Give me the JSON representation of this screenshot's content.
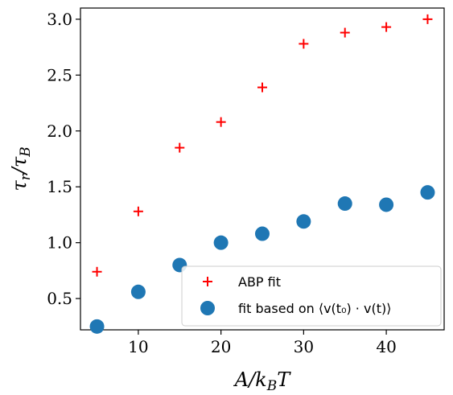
{
  "chart_data": {
    "type": "scatter",
    "title": "",
    "xlabel": "A/k_BT",
    "ylabel": "τ_r/τ_B",
    "xlim": [
      3,
      47
    ],
    "ylim": [
      0.22,
      3.1
    ],
    "xticks": [
      10,
      20,
      30,
      40
    ],
    "yticks": [
      0.5,
      1.0,
      1.5,
      2.0,
      2.5,
      3.0
    ],
    "xtick_labels": [
      "10",
      "20",
      "30",
      "40"
    ],
    "ytick_labels": [
      "0.5",
      "1.0",
      "1.5",
      "2.0",
      "2.5",
      "3.0"
    ],
    "grid": false,
    "legend_position": "lower-right",
    "series": [
      {
        "name": "ABP fit",
        "marker": "plus",
        "color": "#ff0000",
        "x": [
          5,
          10,
          15,
          20,
          25,
          30,
          35,
          40,
          45
        ],
        "y": [
          0.74,
          1.28,
          1.85,
          2.08,
          2.39,
          2.78,
          2.88,
          2.93,
          3.0
        ]
      },
      {
        "name": "fit based on ⟨v(t₀) · v(t)⟩",
        "marker": "circle",
        "color": "#1f77b4",
        "x": [
          5,
          10,
          15,
          20,
          25,
          30,
          35,
          40,
          45
        ],
        "y": [
          0.25,
          0.56,
          0.8,
          1.0,
          1.08,
          1.19,
          1.35,
          1.34,
          1.45
        ]
      }
    ]
  }
}
